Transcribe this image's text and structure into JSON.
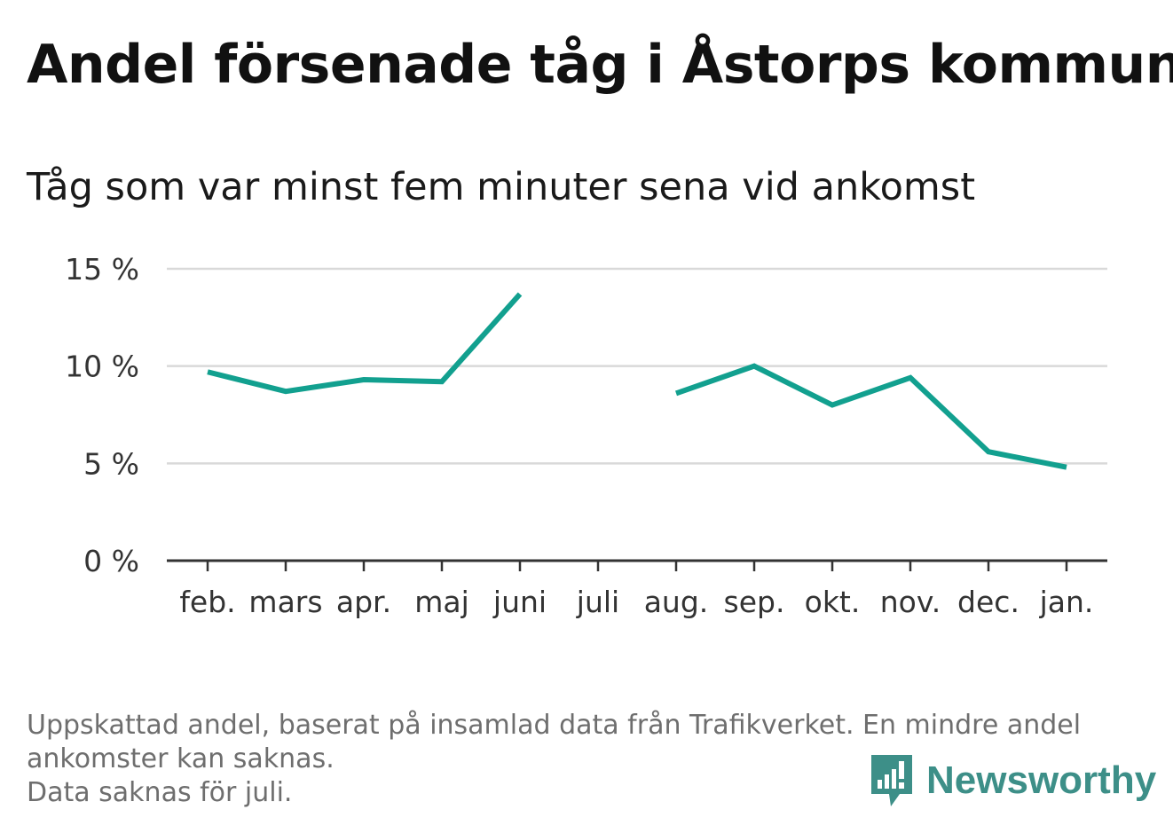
{
  "chart_data": {
    "type": "line",
    "title": "Andel försenade tåg i Åstorps kommun",
    "subtitle": "Tåg som var minst fem minuter sena vid ankomst",
    "categories": [
      "feb.",
      "mars",
      "apr.",
      "maj",
      "juni",
      "juli",
      "aug.",
      "sep.",
      "okt.",
      "nov.",
      "dec.",
      "jan."
    ],
    "series": [
      {
        "values": [
          9.7,
          8.7,
          9.3,
          9.2,
          13.7,
          null,
          8.6,
          10.0,
          8.0,
          9.4,
          5.6,
          4.8
        ],
        "color": "#12a08f"
      }
    ],
    "ylim": [
      0,
      15
    ],
    "yticks": [
      0,
      5,
      10,
      15
    ],
    "ytick_labels": [
      "0 %",
      "5 %",
      "10 %",
      "15 %"
    ],
    "grid": true,
    "legend": "none"
  },
  "footnote": {
    "line1": "Uppskattad andel, baserat på insamlad data från Trafikverket. En mindre andel",
    "line2": "ankomster kan saknas.",
    "line3": "Data saknas för juli."
  },
  "logo": {
    "text": "Newsworthy",
    "color": "#3d8f88",
    "icon": "bar-chart-bubble-icon"
  }
}
